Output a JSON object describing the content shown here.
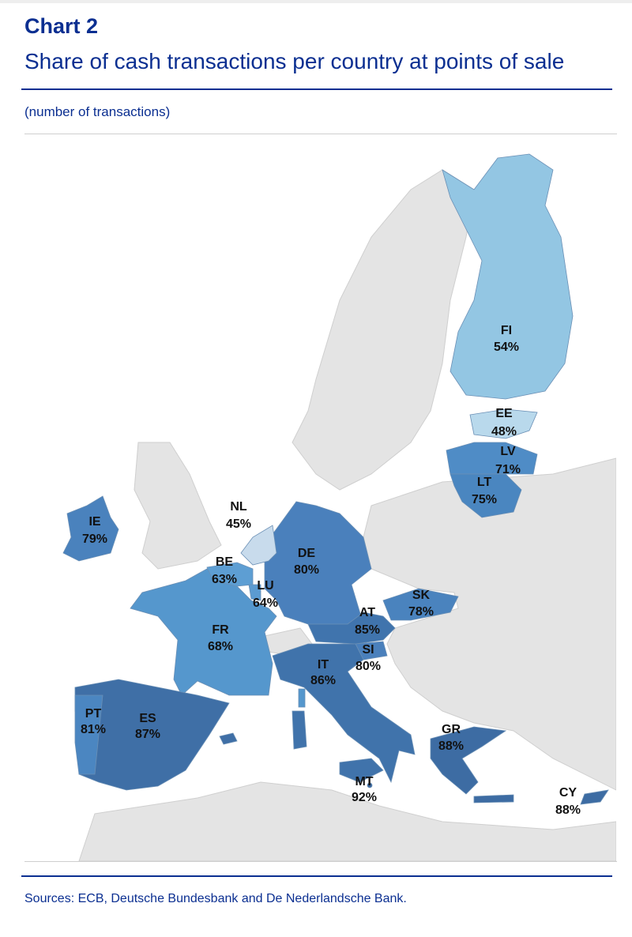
{
  "header": {
    "chart_label": "Chart 2",
    "title": "Share of cash transactions per country at points of sale",
    "unit": "(number of transactions)"
  },
  "footer": {
    "sources": "Sources: ECB, Deutsche Bundesbank and De Nederlandsche Bank."
  },
  "chart_data": {
    "type": "choropleth",
    "title": "Share of cash transactions per country at points of sale",
    "subtitle": "(number of transactions)",
    "region": "euro area",
    "countries": [
      {
        "code": "FI",
        "value": 54,
        "label": "54%",
        "color": "#93c6e3"
      },
      {
        "code": "EE",
        "value": 48,
        "label": "48%",
        "color": "#b9d9ec"
      },
      {
        "code": "LV",
        "value": 71,
        "label": "71%",
        "color": "#4f8cc6"
      },
      {
        "code": "LT",
        "value": 75,
        "label": "75%",
        "color": "#4a86c0"
      },
      {
        "code": "IE",
        "value": 79,
        "label": "79%",
        "color": "#4a82bd"
      },
      {
        "code": "NL",
        "value": 45,
        "label": "45%",
        "color": "#c8dbec"
      },
      {
        "code": "BE",
        "value": 63,
        "label": "63%",
        "color": "#5d9ed3"
      },
      {
        "code": "LU",
        "value": 64,
        "label": "64%",
        "color": "#5b9bd1"
      },
      {
        "code": "DE",
        "value": 80,
        "label": "80%",
        "color": "#4a80bc"
      },
      {
        "code": "FR",
        "value": 68,
        "label": "68%",
        "color": "#5597cd"
      },
      {
        "code": "AT",
        "value": 85,
        "label": "85%",
        "color": "#4074ad"
      },
      {
        "code": "SK",
        "value": 78,
        "label": "78%",
        "color": "#4a83be"
      },
      {
        "code": "SI",
        "value": 80,
        "label": "80%",
        "color": "#4a80bc"
      },
      {
        "code": "IT",
        "value": 86,
        "label": "86%",
        "color": "#4073ab"
      },
      {
        "code": "PT",
        "value": 81,
        "label": "81%",
        "color": "#4b86c1"
      },
      {
        "code": "ES",
        "value": 87,
        "label": "87%",
        "color": "#3f6fa6"
      },
      {
        "code": "GR",
        "value": 88,
        "label": "88%",
        "color": "#3d6ca3"
      },
      {
        "code": "MT",
        "value": 92,
        "label": "92%",
        "color": "#3a669c"
      },
      {
        "code": "CY",
        "value": 88,
        "label": "88%",
        "color": "#3d6ca3"
      }
    ],
    "non_euro_color": "#e4e4e4"
  }
}
